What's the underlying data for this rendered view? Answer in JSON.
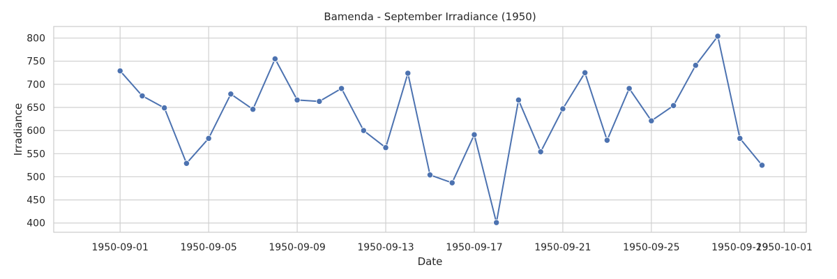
{
  "chart_data": {
    "type": "line",
    "title": "Bamenda - September Irradiance (1950)",
    "xlabel": "Date",
    "ylabel": "Irradiance",
    "ylim": [
      380,
      825
    ],
    "yticks": [
      400,
      450,
      500,
      550,
      600,
      650,
      700,
      750,
      800
    ],
    "xlim": [
      "1950-08-29",
      "1950-10-02"
    ],
    "xticks": [
      "1950-09-01",
      "1950-09-05",
      "1950-09-09",
      "1950-09-13",
      "1950-09-17",
      "1950-09-21",
      "1950-09-25",
      "1950-09-29",
      "1950-10-01"
    ],
    "grid": true,
    "series": [
      {
        "color": "#4c72b0",
        "x": [
          "1950-09-01",
          "1950-09-02",
          "1950-09-03",
          "1950-09-04",
          "1950-09-05",
          "1950-09-06",
          "1950-09-07",
          "1950-09-08",
          "1950-09-09",
          "1950-09-10",
          "1950-09-11",
          "1950-09-12",
          "1950-09-13",
          "1950-09-14",
          "1950-09-15",
          "1950-09-16",
          "1950-09-17",
          "1950-09-18",
          "1950-09-19",
          "1950-09-20",
          "1950-09-21",
          "1950-09-22",
          "1950-09-23",
          "1950-09-24",
          "1950-09-25",
          "1950-09-26",
          "1950-09-27",
          "1950-09-28",
          "1950-09-29",
          "1950-09-30"
        ],
        "values": [
          729,
          675,
          649,
          529,
          583,
          679,
          646,
          755,
          666,
          663,
          691,
          600,
          563,
          724,
          504,
          487,
          591,
          401,
          666,
          554,
          647,
          725,
          579,
          691,
          621,
          654,
          741,
          804,
          583,
          525
        ]
      }
    ]
  }
}
